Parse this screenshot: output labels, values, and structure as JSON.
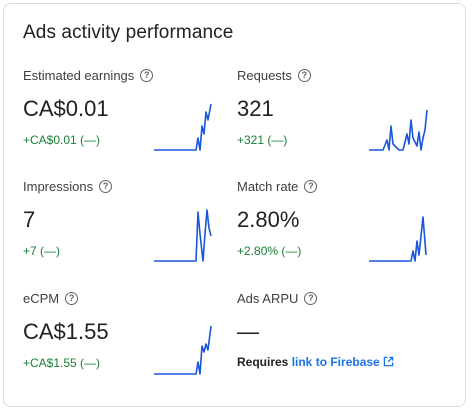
{
  "card": {
    "title": "Ads activity performance"
  },
  "metrics": [
    {
      "label": "Estimated earnings",
      "value": "CA$0.01",
      "delta": "+CA$0.01 (—)"
    },
    {
      "label": "Requests",
      "value": "321",
      "delta": "+321 (—)"
    },
    {
      "label": "Impressions",
      "value": "7",
      "delta": "+7 (—)"
    },
    {
      "label": "Match rate",
      "value": "2.80%",
      "delta": "+2.80% (—)"
    },
    {
      "label": "eCPM",
      "value": "CA$1.55",
      "delta": "+CA$1.55 (—)"
    },
    {
      "label": "Ads ARPU",
      "value": "—",
      "note_prefix": "Requires ",
      "note_link": "link to Firebase"
    }
  ],
  "icons": {
    "help": "help-circle-icon",
    "external": "external-link-icon"
  },
  "colors": {
    "sparkline": "#1a56db",
    "positive_delta": "#188038",
    "link": "#1a73e8"
  }
}
